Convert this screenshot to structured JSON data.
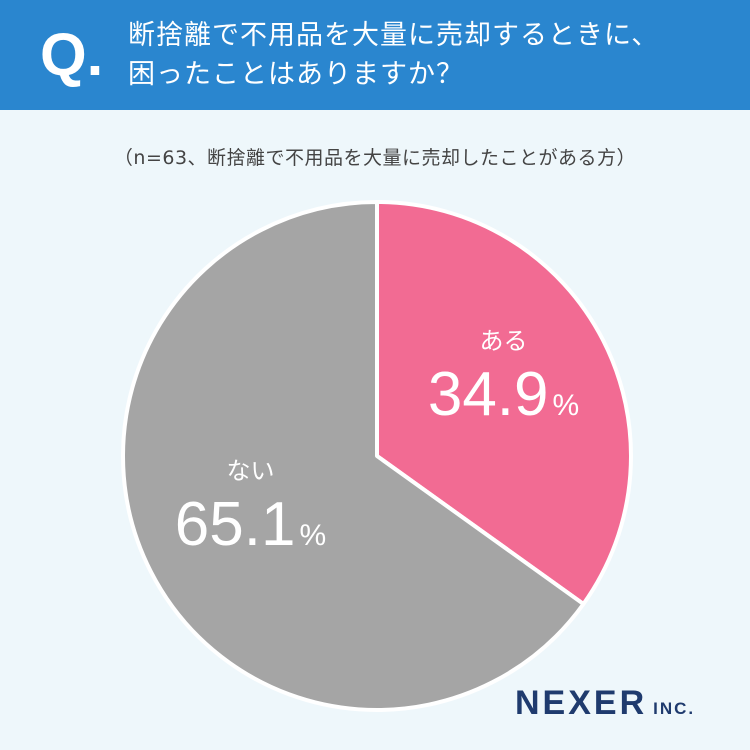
{
  "header": {
    "q_mark": "Q.",
    "question_line1": "断捨離で不用品を大量に売却するときに、",
    "question_line2": "困ったことはありますか？"
  },
  "note": "（n=63、断捨離で不用品を大量に売却したことがある方）",
  "brand": {
    "name": "NEXER",
    "suffix": "INC."
  },
  "colors": {
    "header_bg": "#2a86cf",
    "aru": "#f26b93",
    "nai": "#a5a5a5"
  },
  "chart_data": {
    "type": "pie",
    "title": "",
    "slices": [
      {
        "label": "ある",
        "value": 34.9,
        "value_text": "34.9",
        "unit": "%",
        "color": "#f26b93"
      },
      {
        "label": "ない",
        "value": 65.1,
        "value_text": "65.1",
        "unit": "%",
        "color": "#a5a5a5"
      }
    ],
    "start": "top",
    "direction": "clockwise"
  }
}
